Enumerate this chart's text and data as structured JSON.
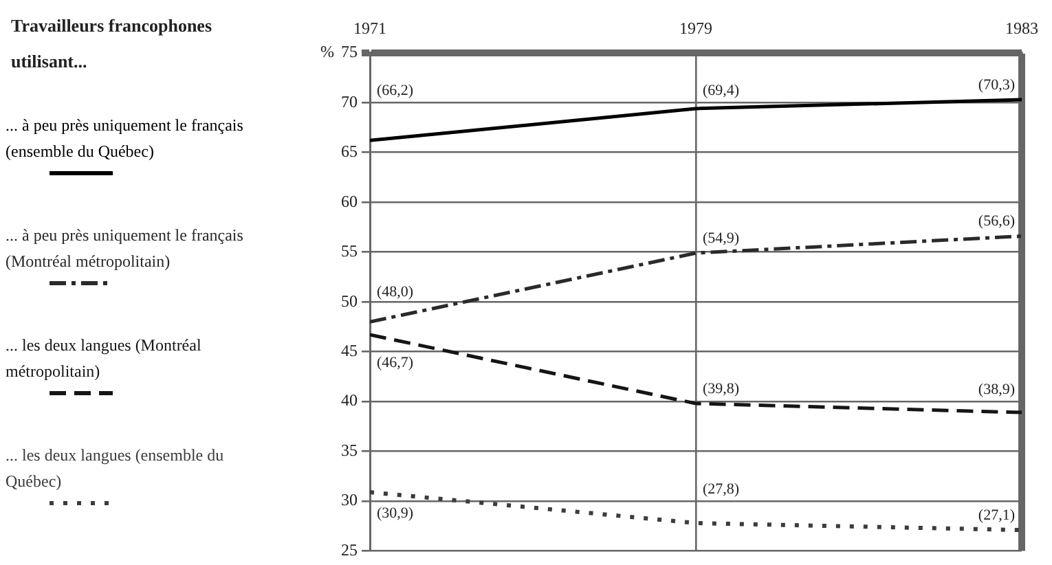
{
  "chart_data": {
    "type": "line",
    "title": "Travailleurs francophones utilisant...",
    "ylabel": "%",
    "categories": [
      "1971",
      "1979",
      "1983"
    ],
    "series": [
      {
        "name": "... à peu près uniquement le français (ensemble du Québec)",
        "color": "#000000",
        "line_style": "solid",
        "values": [
          66.2,
          69.4,
          70.3
        ],
        "value_labels": [
          "(66,2)",
          "(69,4)",
          "(70,3)"
        ]
      },
      {
        "name": "... à peu près uniquement le français (Montréal métropolitain)",
        "color": "#2a2a2a",
        "line_style": "dashdot",
        "values": [
          48.0,
          54.9,
          56.6
        ],
        "value_labels": [
          "(48,0)",
          "(54,9)",
          "(56,6)"
        ]
      },
      {
        "name": "... les deux langues (Montréal métropolitain)",
        "color": "#151515",
        "line_style": "dashed",
        "values": [
          46.7,
          39.8,
          38.9
        ],
        "value_labels": [
          "(46,7)",
          "(39,8)",
          "(38,9)"
        ]
      },
      {
        "name": "... les deux langues (ensemble du Québec)",
        "color": "#3c3c3c",
        "line_style": "dotted",
        "values": [
          30.9,
          27.8,
          27.1
        ],
        "value_labels": [
          "(30,9)",
          "(27,8)",
          "(27,1)"
        ]
      }
    ],
    "ylim": [
      25,
      75
    ],
    "yticks": [
      25,
      30,
      35,
      40,
      45,
      50,
      55,
      60,
      65,
      70,
      75
    ],
    "grid": true,
    "legend": "left",
    "marker": "none"
  }
}
